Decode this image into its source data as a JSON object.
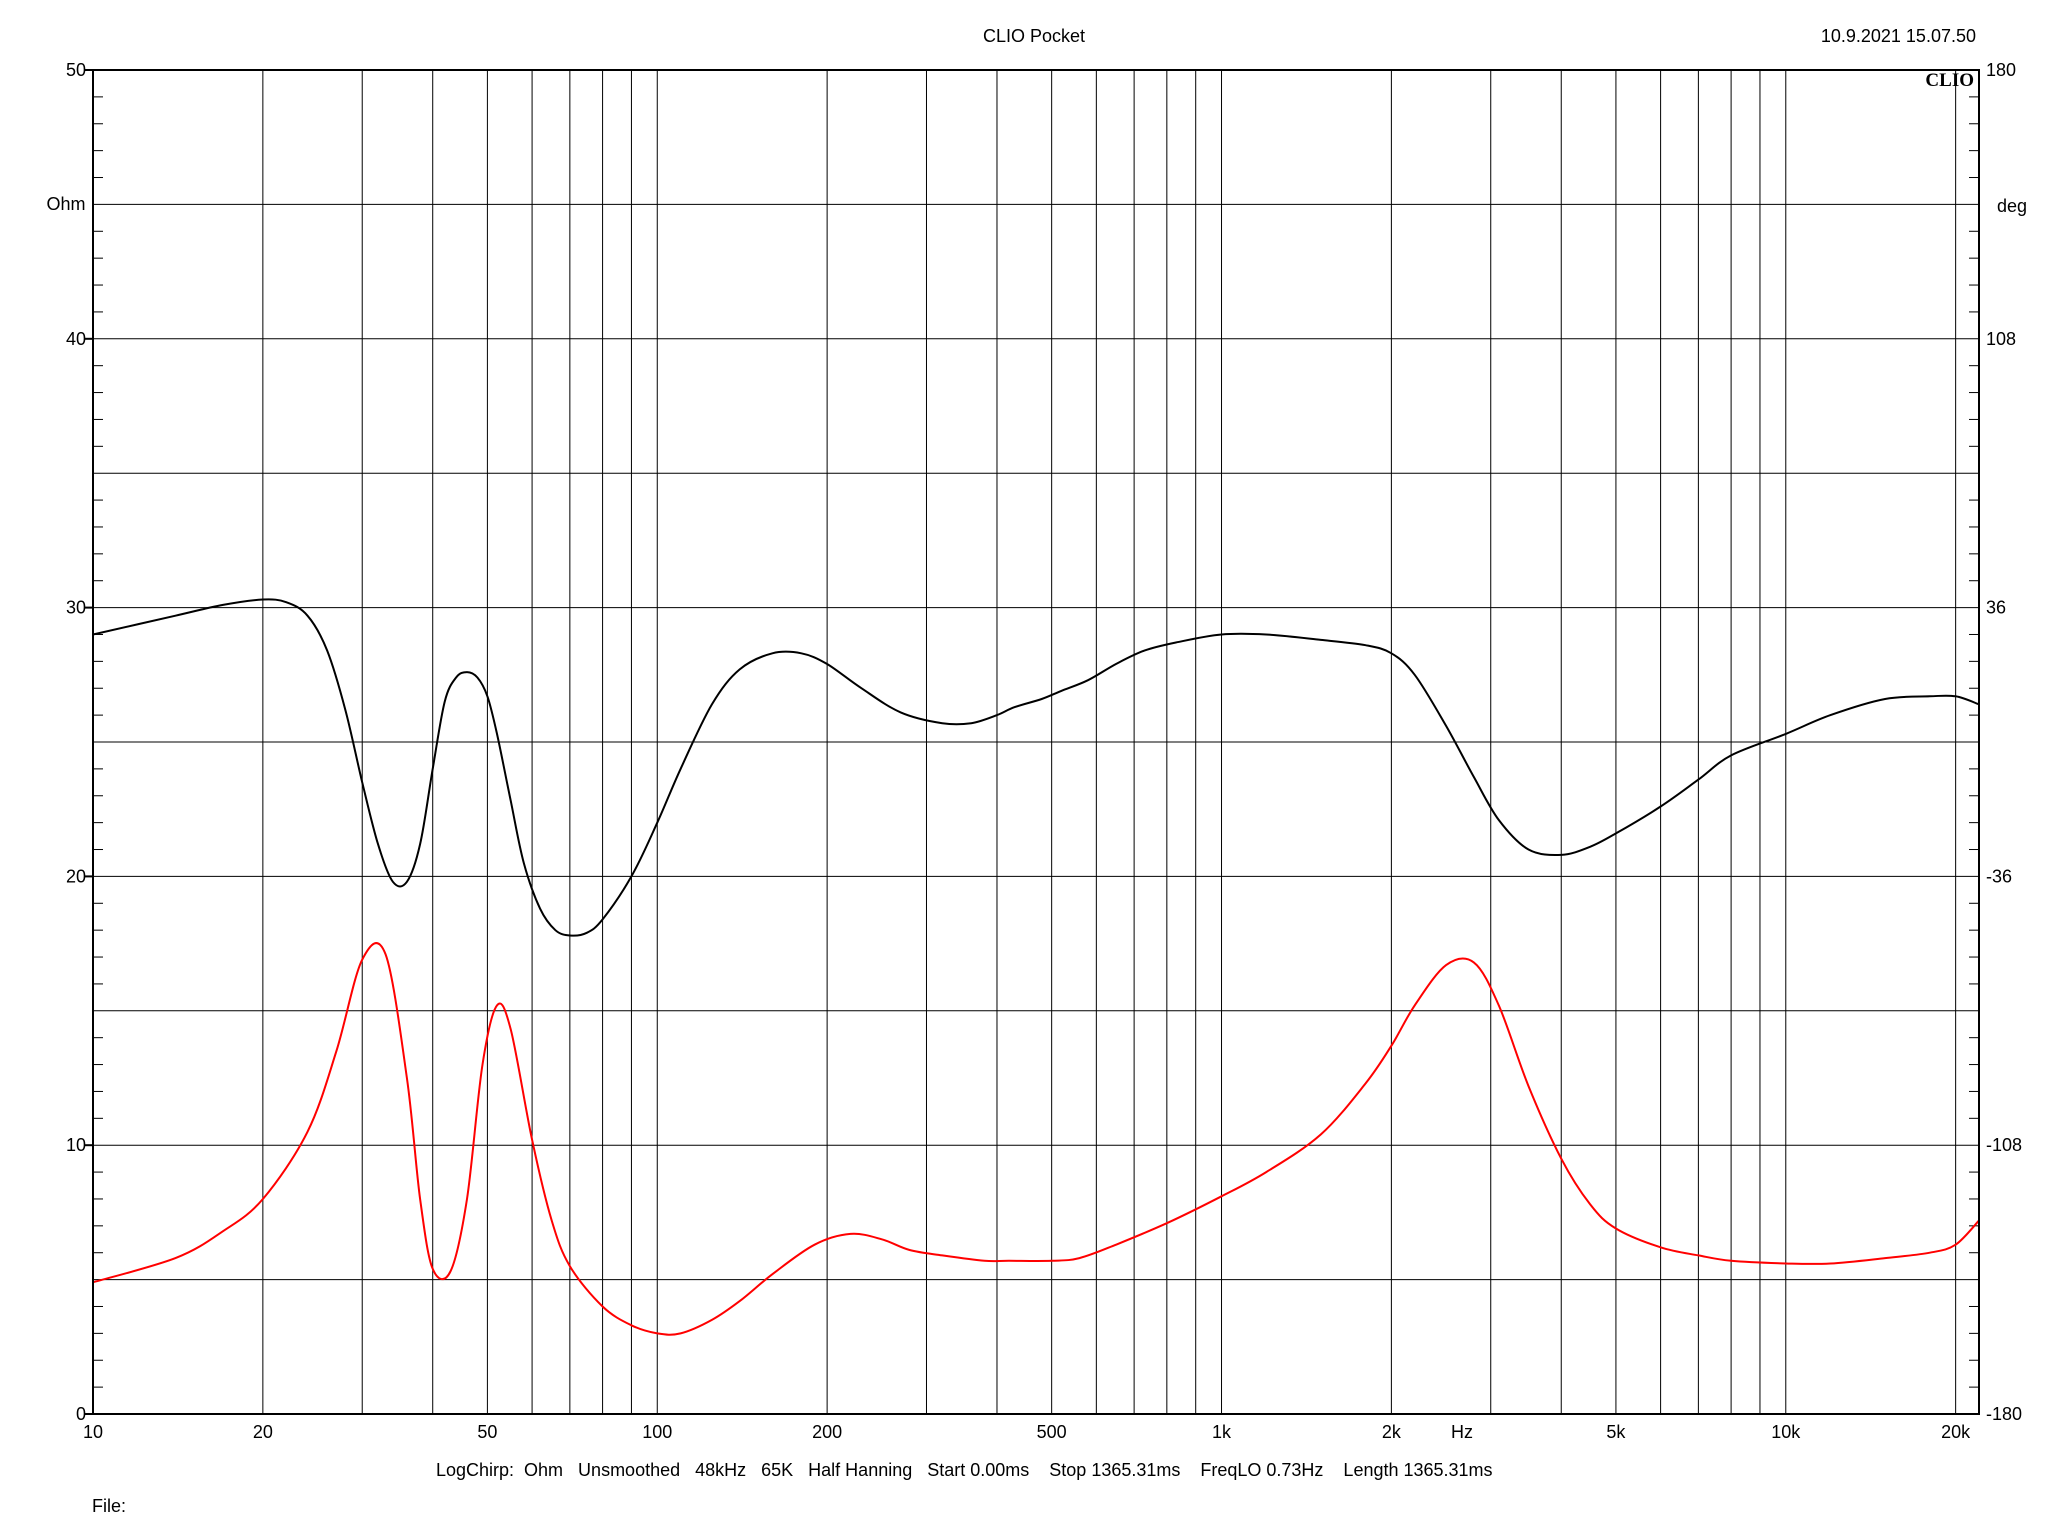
{
  "header": {
    "title": "CLIO Pocket",
    "timestamp": "10.9.2021 15.07.50",
    "logo": "CLIO"
  },
  "footer": {
    "settings": "LogChirp:  Ohm   Unsmoothed   48kHz   65K   Half Hanning   Start 0.00ms    Stop 1365.31ms    FreqLO 0.73Hz    Length 1365.31ms",
    "file_label": "File:"
  },
  "colors": {
    "magnitude": "#ff0000",
    "phase": "#000000",
    "grid": "#000000",
    "background": "#ffffff"
  },
  "chart_data": {
    "type": "line",
    "x_scale": "log",
    "xlim": [
      10,
      22000
    ],
    "x_unit_label": "Hz",
    "x_ticks": [
      {
        "value": 10,
        "label": "10"
      },
      {
        "value": 20,
        "label": "20"
      },
      {
        "value": 50,
        "label": "50"
      },
      {
        "value": 100,
        "label": "100"
      },
      {
        "value": 200,
        "label": "200"
      },
      {
        "value": 500,
        "label": "500"
      },
      {
        "value": 1000,
        "label": "1k"
      },
      {
        "value": 2000,
        "label": "2k"
      },
      {
        "value": 5000,
        "label": "5k"
      },
      {
        "value": 10000,
        "label": "10k"
      },
      {
        "value": 20000,
        "label": "20k"
      }
    ],
    "y_left": {
      "unit": "Ohm",
      "lim": [
        0,
        50
      ],
      "ticks": [
        0,
        10,
        20,
        30,
        40,
        50
      ]
    },
    "y_right": {
      "unit": "deg",
      "lim": [
        -180,
        180
      ],
      "ticks": [
        -180,
        -108,
        -36,
        36,
        108,
        180
      ]
    },
    "grid": true,
    "series": [
      {
        "role": "magnitude",
        "axis": "left",
        "color": "#ff0000",
        "x": [
          10,
          14,
          17,
          20,
          24,
          27,
          30,
          33,
          36,
          38,
          40,
          43,
          46,
          49,
          52,
          55,
          60,
          65,
          70,
          80,
          90,
          100,
          110,
          125,
          140,
          160,
          190,
          220,
          250,
          280,
          320,
          380,
          420,
          500,
          560,
          650,
          800,
          1000,
          1200,
          1500,
          1800,
          2000,
          2200,
          2500,
          2800,
          3100,
          3500,
          4000,
          4500,
          5000,
          6000,
          7000,
          8000,
          10000,
          12000,
          15000,
          18000,
          20000,
          22000
        ],
        "values": [
          4.9,
          5.8,
          6.8,
          8.0,
          10.5,
          13.5,
          16.9,
          17.1,
          12.5,
          8.0,
          5.4,
          5.3,
          8.0,
          13.0,
          15.2,
          14.3,
          10.2,
          7.2,
          5.5,
          4.0,
          3.3,
          3.0,
          3.0,
          3.5,
          4.2,
          5.2,
          6.3,
          6.7,
          6.5,
          6.1,
          5.9,
          5.7,
          5.7,
          5.7,
          5.8,
          6.3,
          7.1,
          8.1,
          9.0,
          10.4,
          12.3,
          13.7,
          15.2,
          16.7,
          16.8,
          15.2,
          12.2,
          9.5,
          7.8,
          6.9,
          6.2,
          5.9,
          5.7,
          5.6,
          5.6,
          5.8,
          6.0,
          6.3,
          7.2
        ]
      },
      {
        "role": "phase",
        "axis": "right",
        "color": "#000000",
        "x": [
          10,
          14,
          17,
          20,
          22,
          24,
          26,
          28,
          30,
          32,
          34,
          36,
          38,
          40,
          42,
          44,
          46,
          48,
          50,
          52,
          55,
          58,
          62,
          66,
          70,
          75,
          80,
          90,
          100,
          110,
          125,
          140,
          160,
          180,
          200,
          230,
          270,
          320,
          360,
          400,
          430,
          480,
          520,
          580,
          650,
          730,
          830,
          1000,
          1200,
          1500,
          1800,
          2000,
          2200,
          2500,
          2800,
          3100,
          3500,
          4000,
          4500,
          5000,
          6000,
          7000,
          8000,
          10000,
          12000,
          15000,
          18000,
          20000,
          22000
        ],
        "values": [
          29.0,
          29.7,
          30.1,
          30.3,
          30.2,
          29.7,
          28.4,
          26.2,
          23.5,
          21.2,
          19.8,
          19.8,
          21.2,
          24.0,
          26.5,
          27.4,
          27.6,
          27.4,
          26.7,
          25.3,
          22.8,
          20.5,
          18.8,
          18.0,
          17.8,
          17.9,
          18.4,
          20.0,
          22.0,
          24.0,
          26.4,
          27.7,
          28.3,
          28.3,
          27.9,
          27.0,
          26.1,
          25.7,
          25.7,
          26.0,
          26.3,
          26.6,
          26.9,
          27.3,
          27.9,
          28.4,
          28.7,
          29.0,
          29.0,
          28.8,
          28.6,
          28.3,
          27.5,
          25.6,
          23.7,
          22.1,
          21.0,
          20.8,
          21.1,
          21.6,
          22.6,
          23.6,
          24.5,
          25.3,
          26.0,
          26.6,
          26.7,
          26.7,
          26.4
        ]
      }
    ]
  }
}
